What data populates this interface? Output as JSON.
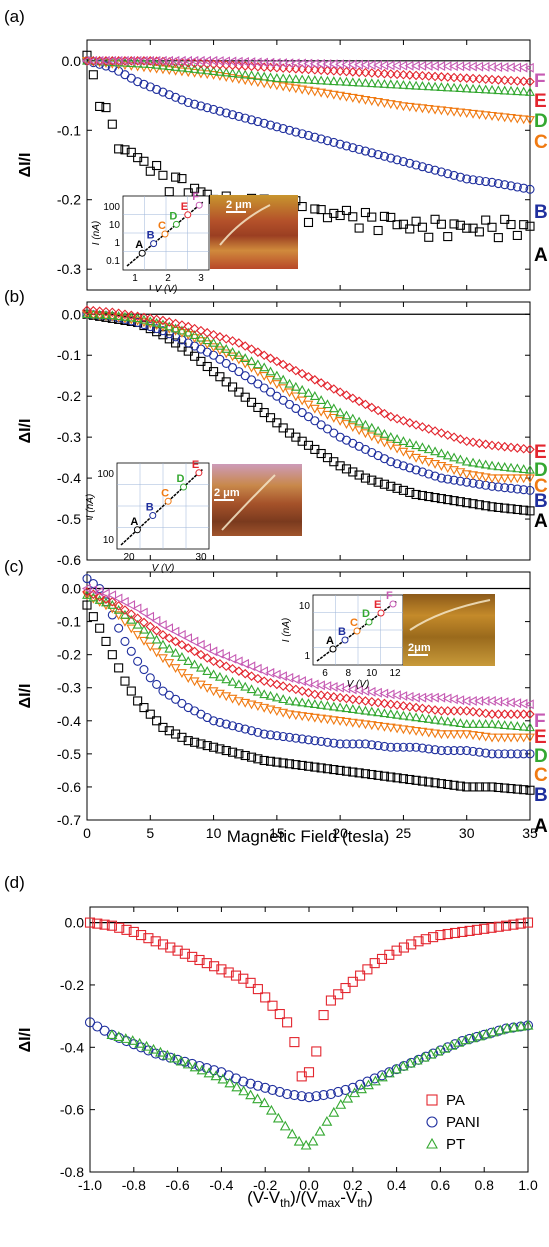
{
  "colors": {
    "A": "#000000",
    "B": "#1f2f9e",
    "C": "#f07a12",
    "D": "#34a831",
    "E": "#e3262f",
    "F": "#c65ab3",
    "PA": "#e3262f",
    "PANI": "#1f2f9e",
    "PT": "#34a831",
    "axis": "#000000"
  },
  "panels": {
    "a": {
      "label": "(a)",
      "ylabel": "ΔI/I"
    },
    "b": {
      "label": "(b)",
      "ylabel": "ΔI/I"
    },
    "c": {
      "label": "(c)",
      "ylabel": "ΔI/I",
      "xlabel": "Magnetic Field (tesla)"
    },
    "d": {
      "label": "(d)",
      "ylabel": "ΔI/I",
      "xlabel_parts": [
        "(V-V",
        "th",
        ")/(V",
        "max",
        "-V",
        "th",
        ")"
      ]
    }
  },
  "insets": {
    "a": {
      "ylabel": "I (nA)",
      "xlabel": "V (V)",
      "yticks": [
        "100",
        "10",
        "1",
        "0.1"
      ],
      "xticks": [
        "1",
        "2",
        "3"
      ],
      "scalebar": "2 μm",
      "letters": [
        "A",
        "B",
        "C",
        "D",
        "E",
        "F"
      ]
    },
    "b": {
      "ylabel": "I (nA)",
      "xlabel": "V (V)",
      "yticks": [
        "100",
        "10"
      ],
      "xticks": [
        "20",
        "30"
      ],
      "scalebar": "2 μm",
      "letters": [
        "A",
        "B",
        "C",
        "D",
        "E"
      ]
    },
    "c": {
      "ylabel": "I (nA)",
      "xlabel": "V (V)",
      "yticks": [
        "10",
        "1"
      ],
      "xticks": [
        "6",
        "8",
        "10",
        "12"
      ],
      "scalebar": "2μm",
      "letters": [
        "A",
        "B",
        "C",
        "D",
        "E",
        "F"
      ]
    }
  },
  "chart_data": [
    {
      "type": "scatter",
      "panel": "a",
      "xlim": [
        0,
        35
      ],
      "ylim": [
        -0.33,
        0.03
      ],
      "yticks": [
        "0.0",
        "-0.1",
        "-0.2",
        "-0.3"
      ],
      "series": [
        {
          "name": "A",
          "marker": "square",
          "x": [
            0,
            1,
            2,
            3,
            4,
            5,
            6,
            8,
            10,
            12,
            14,
            16,
            18,
            20,
            22,
            24,
            26,
            28,
            30,
            32,
            35
          ],
          "values": [
            0.0,
            -0.05,
            -0.1,
            -0.13,
            -0.14,
            -0.15,
            -0.17,
            -0.18,
            -0.2,
            -0.21,
            -0.2,
            -0.21,
            -0.22,
            -0.22,
            -0.23,
            -0.23,
            -0.24,
            -0.24,
            -0.24,
            -0.24,
            -0.24
          ]
        },
        {
          "name": "B",
          "marker": "circle",
          "x": [
            0,
            2,
            4,
            6,
            8,
            10,
            12,
            14,
            16,
            18,
            20,
            22,
            24,
            26,
            28,
            30,
            32,
            35
          ],
          "values": [
            0.0,
            -0.01,
            -0.03,
            -0.045,
            -0.06,
            -0.07,
            -0.08,
            -0.09,
            -0.1,
            -0.11,
            -0.12,
            -0.13,
            -0.14,
            -0.15,
            -0.16,
            -0.17,
            -0.175,
            -0.185
          ]
        },
        {
          "name": "C",
          "marker": "triangle-down",
          "x": [
            0,
            5,
            10,
            15,
            20,
            25,
            30,
            35
          ],
          "values": [
            0.0,
            -0.01,
            -0.02,
            -0.035,
            -0.05,
            -0.065,
            -0.075,
            -0.085
          ]
        },
        {
          "name": "D",
          "marker": "triangle-up",
          "x": [
            0,
            5,
            10,
            15,
            20,
            25,
            30,
            35
          ],
          "values": [
            0.0,
            -0.005,
            -0.015,
            -0.025,
            -0.03,
            -0.035,
            -0.04,
            -0.045
          ]
        },
        {
          "name": "E",
          "marker": "diamond",
          "x": [
            0,
            5,
            10,
            15,
            20,
            25,
            30,
            35
          ],
          "values": [
            0.0,
            0.0,
            -0.005,
            -0.01,
            -0.015,
            -0.02,
            -0.025,
            -0.03
          ]
        },
        {
          "name": "F",
          "marker": "triangle-left",
          "x": [
            0,
            5,
            10,
            15,
            20,
            25,
            30,
            35
          ],
          "values": [
            0.0,
            0.0,
            0.0,
            -0.003,
            -0.005,
            -0.007,
            -0.008,
            -0.01
          ]
        }
      ]
    },
    {
      "type": "scatter",
      "panel": "b",
      "xlim": [
        0,
        35
      ],
      "ylim": [
        -0.6,
        0.03
      ],
      "yticks": [
        "0.0",
        "-0.1",
        "-0.2",
        "-0.3",
        "-0.4",
        "-0.5",
        "-0.6"
      ],
      "series": [
        {
          "name": "A",
          "marker": "square",
          "x": [
            0,
            2,
            4,
            6,
            8,
            10,
            12,
            14,
            16,
            18,
            20,
            22,
            24,
            26,
            28,
            30,
            32,
            35
          ],
          "values": [
            0.0,
            -0.01,
            -0.02,
            -0.05,
            -0.09,
            -0.14,
            -0.19,
            -0.24,
            -0.29,
            -0.33,
            -0.37,
            -0.4,
            -0.42,
            -0.44,
            -0.45,
            -0.46,
            -0.47,
            -0.48
          ]
        },
        {
          "name": "B",
          "marker": "circle",
          "x": [
            0,
            2,
            4,
            6,
            8,
            10,
            12,
            14,
            16,
            18,
            20,
            22,
            24,
            26,
            28,
            30,
            32,
            35
          ],
          "values": [
            0.0,
            -0.005,
            -0.02,
            -0.04,
            -0.07,
            -0.1,
            -0.14,
            -0.18,
            -0.22,
            -0.26,
            -0.3,
            -0.33,
            -0.36,
            -0.38,
            -0.4,
            -0.41,
            -0.42,
            -0.43
          ]
        },
        {
          "name": "C",
          "marker": "triangle-down",
          "x": [
            0,
            2,
            4,
            6,
            8,
            10,
            12,
            14,
            16,
            18,
            20,
            22,
            24,
            26,
            28,
            30,
            32,
            35
          ],
          "values": [
            0.0,
            -0.005,
            -0.015,
            -0.03,
            -0.05,
            -0.08,
            -0.11,
            -0.15,
            -0.19,
            -0.23,
            -0.26,
            -0.29,
            -0.32,
            -0.35,
            -0.37,
            -0.39,
            -0.4,
            -0.4
          ]
        },
        {
          "name": "D",
          "marker": "triangle-up",
          "x": [
            0,
            2,
            4,
            6,
            8,
            10,
            12,
            14,
            16,
            18,
            20,
            22,
            24,
            26,
            28,
            30,
            32,
            35
          ],
          "values": [
            0.0,
            -0.003,
            -0.01,
            -0.025,
            -0.045,
            -0.07,
            -0.1,
            -0.13,
            -0.17,
            -0.2,
            -0.24,
            -0.27,
            -0.3,
            -0.32,
            -0.34,
            -0.36,
            -0.37,
            -0.38
          ]
        },
        {
          "name": "E",
          "marker": "diamond",
          "x": [
            0,
            2,
            4,
            6,
            8,
            10,
            12,
            14,
            16,
            18,
            20,
            22,
            24,
            26,
            28,
            30,
            32,
            35
          ],
          "values": [
            0.01,
            0.005,
            -0.005,
            -0.015,
            -0.03,
            -0.05,
            -0.07,
            -0.1,
            -0.13,
            -0.16,
            -0.19,
            -0.22,
            -0.25,
            -0.27,
            -0.29,
            -0.31,
            -0.32,
            -0.33
          ]
        }
      ]
    },
    {
      "type": "scatter",
      "panel": "c",
      "xlim": [
        0,
        35
      ],
      "ylim": [
        -0.7,
        0.05
      ],
      "xticks": [
        "0",
        "5",
        "10",
        "15",
        "20",
        "25",
        "30",
        "35"
      ],
      "yticks": [
        "0.0",
        "-0.1",
        "-0.2",
        "-0.3",
        "-0.4",
        "-0.5",
        "-0.6",
        "-0.7"
      ],
      "series": [
        {
          "name": "A",
          "marker": "square",
          "x": [
            0,
            1,
            2,
            3,
            4,
            5,
            6,
            8,
            10,
            12,
            14,
            16,
            18,
            20,
            22,
            24,
            26,
            28,
            30,
            32,
            35
          ],
          "values": [
            -0.05,
            -0.12,
            -0.2,
            -0.28,
            -0.34,
            -0.38,
            -0.42,
            -0.46,
            -0.48,
            -0.5,
            -0.52,
            -0.53,
            -0.54,
            -0.55,
            -0.56,
            -0.57,
            -0.58,
            -0.59,
            -0.6,
            -0.6,
            -0.61
          ]
        },
        {
          "name": "B",
          "marker": "circle",
          "x": [
            0,
            1,
            2,
            3,
            4,
            5,
            6,
            8,
            10,
            12,
            14,
            16,
            18,
            20,
            22,
            24,
            26,
            28,
            30,
            32,
            35
          ],
          "values": [
            0.03,
            0.0,
            -0.08,
            -0.16,
            -0.22,
            -0.27,
            -0.31,
            -0.36,
            -0.4,
            -0.42,
            -0.44,
            -0.45,
            -0.46,
            -0.47,
            -0.47,
            -0.48,
            -0.48,
            -0.49,
            -0.49,
            -0.5,
            -0.5
          ]
        },
        {
          "name": "C",
          "marker": "triangle-down",
          "x": [
            0,
            2,
            4,
            6,
            8,
            10,
            12,
            14,
            16,
            18,
            20,
            22,
            24,
            26,
            28,
            30,
            32,
            35
          ],
          "values": [
            -0.02,
            -0.06,
            -0.14,
            -0.21,
            -0.27,
            -0.31,
            -0.34,
            -0.36,
            -0.38,
            -0.39,
            -0.4,
            -0.41,
            -0.42,
            -0.43,
            -0.44,
            -0.44,
            -0.45,
            -0.45
          ]
        },
        {
          "name": "D",
          "marker": "triangle-up",
          "x": [
            0,
            2,
            4,
            6,
            8,
            10,
            12,
            14,
            16,
            18,
            20,
            22,
            24,
            26,
            28,
            30,
            32,
            35
          ],
          "values": [
            -0.02,
            -0.05,
            -0.11,
            -0.17,
            -0.22,
            -0.26,
            -0.29,
            -0.32,
            -0.34,
            -0.35,
            -0.36,
            -0.37,
            -0.38,
            -0.39,
            -0.4,
            -0.41,
            -0.41,
            -0.42
          ]
        },
        {
          "name": "E",
          "marker": "diamond",
          "x": [
            0,
            2,
            4,
            6,
            8,
            10,
            12,
            14,
            16,
            18,
            20,
            22,
            24,
            26,
            28,
            30,
            32,
            35
          ],
          "values": [
            -0.01,
            -0.04,
            -0.09,
            -0.14,
            -0.18,
            -0.22,
            -0.25,
            -0.28,
            -0.3,
            -0.32,
            -0.33,
            -0.34,
            -0.35,
            -0.36,
            -0.37,
            -0.37,
            -0.38,
            -0.38
          ]
        },
        {
          "name": "F",
          "marker": "triangle-left",
          "x": [
            0,
            2,
            4,
            6,
            8,
            10,
            12,
            14,
            16,
            18,
            20,
            22,
            24,
            26,
            28,
            30,
            32,
            35
          ],
          "values": [
            0.0,
            -0.02,
            -0.06,
            -0.11,
            -0.15,
            -0.19,
            -0.22,
            -0.25,
            -0.27,
            -0.29,
            -0.3,
            -0.31,
            -0.32,
            -0.33,
            -0.33,
            -0.34,
            -0.34,
            -0.35
          ]
        }
      ]
    },
    {
      "type": "scatter",
      "panel": "d",
      "xlim": [
        -1.0,
        1.0
      ],
      "ylim": [
        -0.8,
        0.05
      ],
      "xticks": [
        "-1.0",
        "-0.8",
        "-0.6",
        "-0.4",
        "-0.2",
        "0.0",
        "0.2",
        "0.4",
        "0.6",
        "0.8",
        "1.0"
      ],
      "yticks": [
        "0.0",
        "-0.2",
        "-0.4",
        "-0.6",
        "-0.8"
      ],
      "legend": {
        "placement": "bottom-right",
        "entries": [
          "PA",
          "PANI",
          "PT"
        ]
      },
      "series": [
        {
          "name": "PA",
          "marker": "square",
          "x": [
            -1.0,
            -0.9,
            -0.8,
            -0.7,
            -0.6,
            -0.5,
            -0.4,
            -0.3,
            -0.25,
            -0.2,
            -0.15,
            -0.1,
            -0.07,
            -0.05,
            0.0,
            0.05,
            0.07,
            0.1,
            0.15,
            0.2,
            0.25,
            0.3,
            0.4,
            0.5,
            0.6,
            0.7,
            0.8,
            0.9,
            1.0
          ],
          "values": [
            0.0,
            -0.01,
            -0.03,
            -0.06,
            -0.09,
            -0.12,
            -0.15,
            -0.18,
            -0.2,
            -0.24,
            -0.28,
            -0.32,
            -0.36,
            -0.5,
            -0.48,
            -0.38,
            -0.28,
            -0.25,
            -0.22,
            -0.19,
            -0.16,
            -0.13,
            -0.09,
            -0.06,
            -0.04,
            -0.03,
            -0.02,
            -0.01,
            0.0
          ]
        },
        {
          "name": "PANI",
          "marker": "circle",
          "x": [
            -1.0,
            -0.9,
            -0.8,
            -0.7,
            -0.6,
            -0.5,
            -0.4,
            -0.3,
            -0.2,
            -0.1,
            0.0,
            0.1,
            0.2,
            0.3,
            0.4,
            0.5,
            0.6,
            0.7,
            0.8,
            0.9,
            1.0
          ],
          "values": [
            -0.32,
            -0.36,
            -0.39,
            -0.42,
            -0.44,
            -0.46,
            -0.48,
            -0.51,
            -0.53,
            -0.55,
            -0.56,
            -0.55,
            -0.53,
            -0.5,
            -0.47,
            -0.44,
            -0.41,
            -0.38,
            -0.36,
            -0.34,
            -0.33
          ]
        },
        {
          "name": "PT",
          "marker": "triangle-up",
          "x": [
            -0.9,
            -0.8,
            -0.7,
            -0.6,
            -0.5,
            -0.4,
            -0.3,
            -0.2,
            -0.15,
            -0.1,
            -0.05,
            0.0,
            0.05,
            0.1,
            0.15,
            0.2,
            0.3,
            0.4,
            0.5,
            0.6,
            0.7,
            0.8,
            0.9,
            1.0
          ],
          "values": [
            -0.36,
            -0.38,
            -0.41,
            -0.44,
            -0.47,
            -0.5,
            -0.54,
            -0.58,
            -0.62,
            -0.66,
            -0.7,
            -0.72,
            -0.67,
            -0.62,
            -0.58,
            -0.55,
            -0.51,
            -0.47,
            -0.44,
            -0.41,
            -0.38,
            -0.36,
            -0.34,
            -0.33
          ]
        }
      ]
    }
  ]
}
